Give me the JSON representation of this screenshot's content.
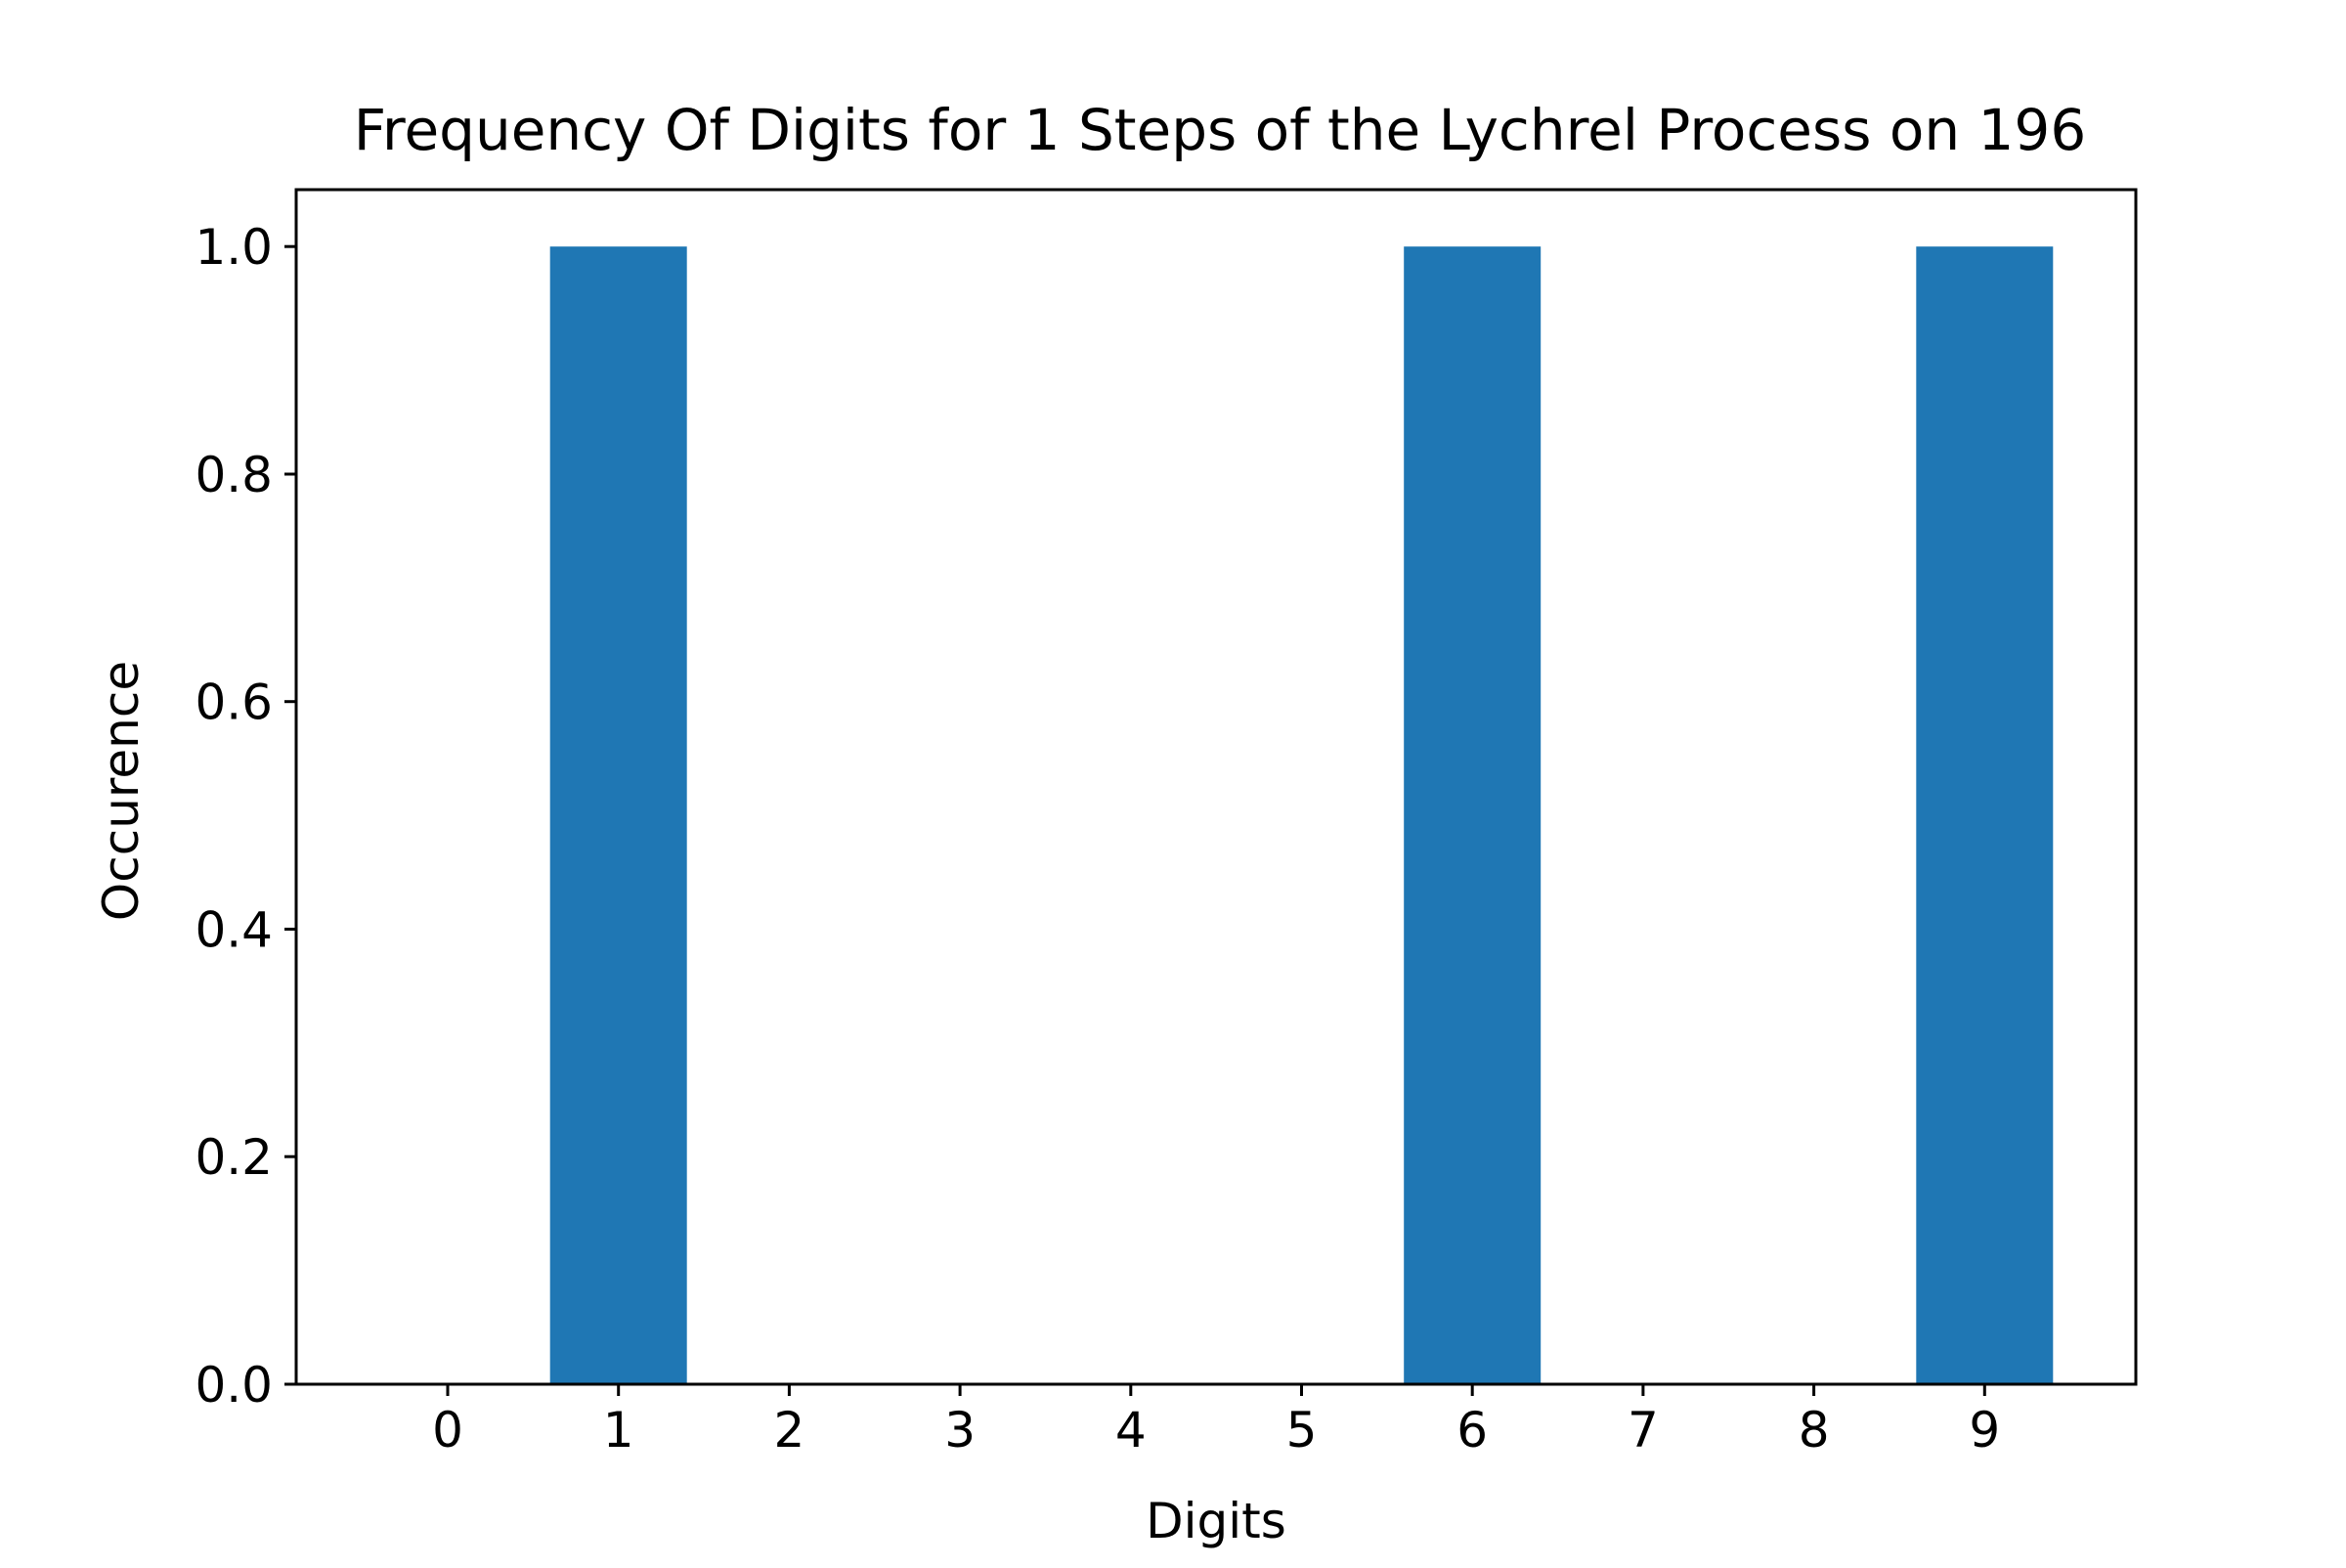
{
  "chart_data": {
    "type": "bar",
    "title": "Frequency Of Digits for 1 Steps of the Lychrel Process on 196",
    "xlabel": "Digits",
    "ylabel": "Occurence",
    "categories": [
      "0",
      "1",
      "2",
      "3",
      "4",
      "5",
      "6",
      "7",
      "8",
      "9"
    ],
    "values": [
      0,
      1,
      0,
      0,
      0,
      0,
      1,
      0,
      0,
      1
    ],
    "ylim": [
      0,
      1.05
    ],
    "yticks": [
      0.0,
      0.2,
      0.4,
      0.6,
      0.8,
      1.0
    ],
    "ytick_labels": [
      "0.0",
      "0.2",
      "0.4",
      "0.6",
      "0.8",
      "1.0"
    ],
    "bar_color": "#1f77b4",
    "grid": false,
    "legend": "none"
  }
}
